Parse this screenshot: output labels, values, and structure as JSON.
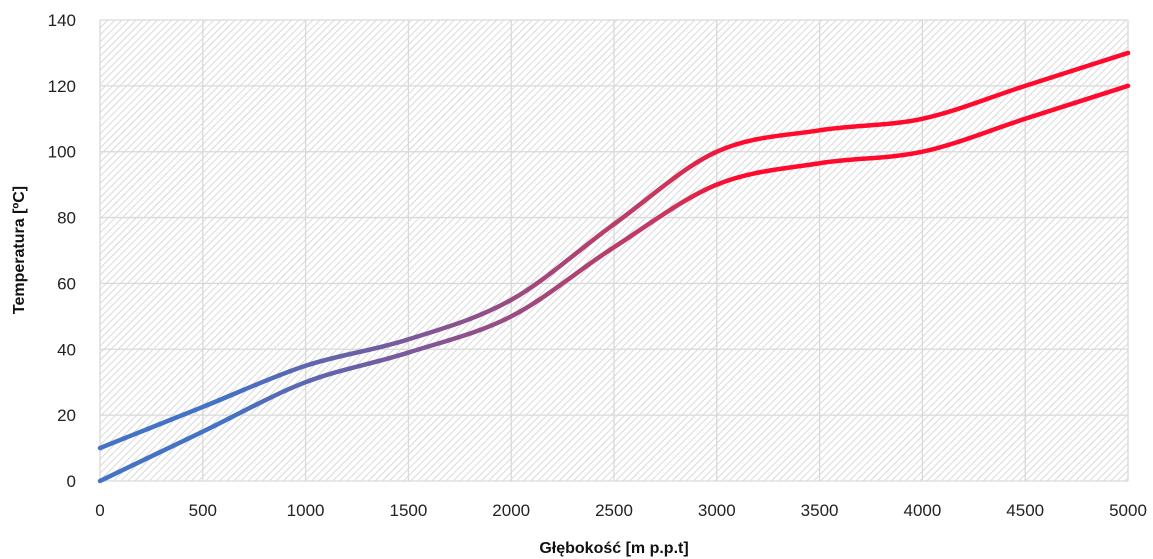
{
  "chart_data": {
    "type": "line",
    "title": "",
    "xlabel": "Głębokość [m p.p.t]",
    "ylabel": "Temperatura [ºC]",
    "xlim": [
      0,
      5000
    ],
    "ylim": [
      0,
      140
    ],
    "xticks": [
      0,
      500,
      1000,
      1500,
      2000,
      2500,
      3000,
      3500,
      4000,
      4500,
      5000
    ],
    "yticks": [
      0,
      20,
      40,
      60,
      80,
      100,
      120,
      140
    ],
    "grid": true,
    "legend": "none",
    "series": [
      {
        "x": [
          0,
          500,
          1000,
          1500,
          2000,
          2500,
          3000,
          3500,
          4000,
          4500,
          5000
        ],
        "values": [
          10,
          22.5,
          35,
          43,
          55,
          78,
          100,
          106.5,
          110,
          120,
          130
        ]
      },
      {
        "x": [
          0,
          500,
          1000,
          1500,
          2000,
          2500,
          3000,
          3500,
          4000,
          4500,
          5000
        ],
        "values": [
          0,
          15,
          30,
          39,
          50,
          71,
          90,
          96.5,
          100,
          110,
          120
        ]
      }
    ],
    "colors": {
      "line_start": "#4472c4",
      "line_end": "#ff0a2d",
      "grid": "#d9d9d9",
      "hatch": "#d0d0d0"
    }
  }
}
